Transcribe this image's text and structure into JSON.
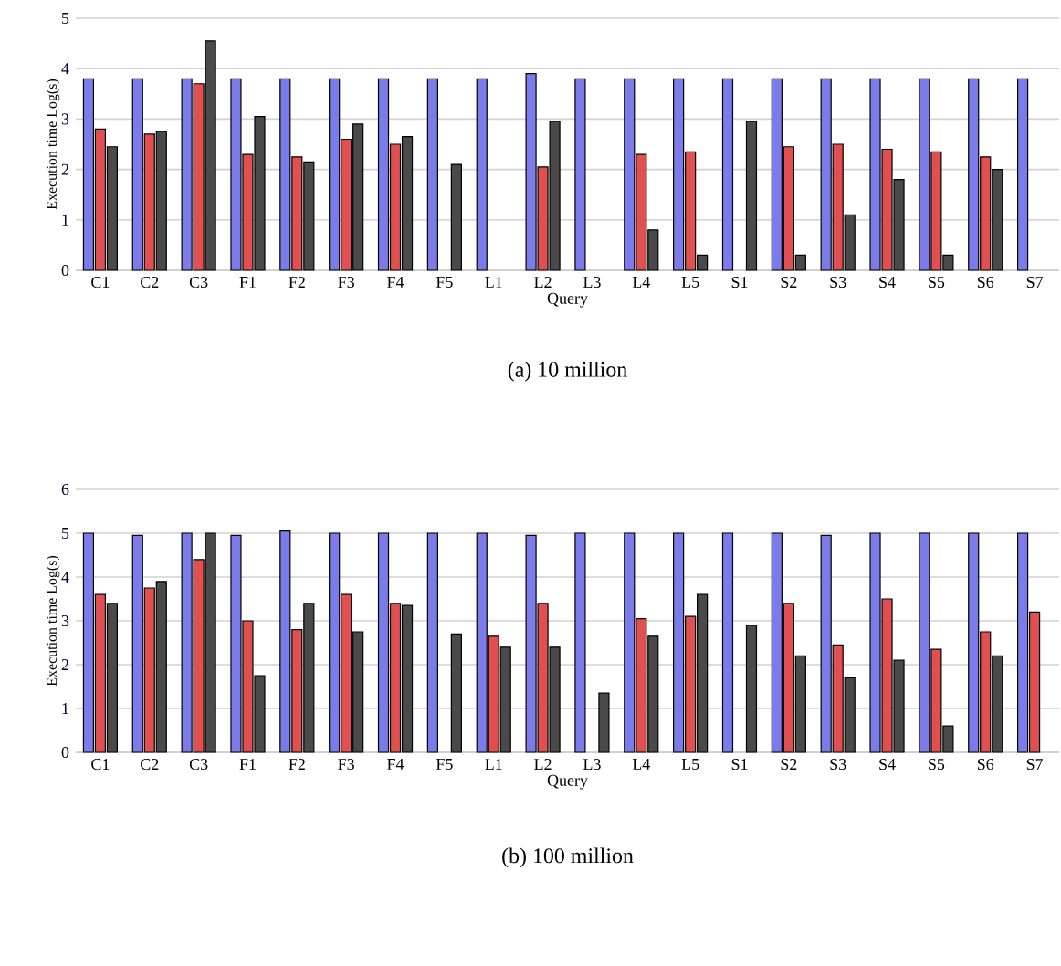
{
  "chart_data": [
    {
      "type": "bar",
      "title": "(a) 10 million",
      "xlabel": "Query",
      "ylabel": "Execution time Log(s)",
      "categories": [
        "C1",
        "C2",
        "C3",
        "F1",
        "F2",
        "F3",
        "F4",
        "F5",
        "L1",
        "L2",
        "L3",
        "L4",
        "L5",
        "S1",
        "S2",
        "S3",
        "S4",
        "S5",
        "S6",
        "S7"
      ],
      "series": [
        {
          "color": "#7b7bea",
          "values": [
            3.8,
            3.8,
            3.8,
            3.8,
            3.8,
            3.8,
            3.8,
            3.8,
            3.8,
            3.9,
            3.8,
            3.8,
            3.8,
            3.8,
            3.8,
            3.8,
            3.8,
            3.8,
            3.8,
            3.8
          ]
        },
        {
          "color": "#e05050",
          "values": [
            2.8,
            2.7,
            3.7,
            2.3,
            2.25,
            2.6,
            2.5,
            null,
            null,
            2.05,
            null,
            2.3,
            2.35,
            null,
            2.45,
            2.5,
            2.4,
            2.35,
            2.25,
            null
          ]
        },
        {
          "color": "#4a4a4a",
          "values": [
            2.45,
            2.75,
            4.55,
            3.05,
            2.15,
            2.9,
            2.65,
            2.1,
            null,
            2.95,
            null,
            0.8,
            0.3,
            2.95,
            0.3,
            1.1,
            1.8,
            0.3,
            2.0,
            null
          ]
        }
      ],
      "ylim": [
        0,
        5
      ],
      "yticks": [
        0,
        1,
        2,
        3,
        4,
        5
      ],
      "grid": "y"
    },
    {
      "type": "bar",
      "title": "(b) 100 million",
      "xlabel": "Query",
      "ylabel": "Execution time Log(s)",
      "categories": [
        "C1",
        "C2",
        "C3",
        "F1",
        "F2",
        "F3",
        "F4",
        "F5",
        "L1",
        "L2",
        "L3",
        "L4",
        "L5",
        "S1",
        "S2",
        "S3",
        "S4",
        "S5",
        "S6",
        "S7"
      ],
      "series": [
        {
          "color": "#7b7bea",
          "values": [
            5.0,
            4.95,
            5.0,
            4.95,
            5.05,
            5.0,
            5.0,
            5.0,
            5.0,
            4.95,
            5.0,
            5.0,
            5.0,
            5.0,
            5.0,
            4.95,
            5.0,
            5.0,
            5.0,
            5.0
          ]
        },
        {
          "color": "#e05050",
          "values": [
            3.6,
            3.75,
            4.4,
            3.0,
            2.8,
            3.6,
            3.4,
            null,
            2.65,
            3.4,
            null,
            3.05,
            3.1,
            null,
            3.4,
            2.45,
            3.5,
            2.35,
            2.75,
            3.2
          ]
        },
        {
          "color": "#4a4a4a",
          "values": [
            3.4,
            3.9,
            5.0,
            1.75,
            3.4,
            2.75,
            3.35,
            2.7,
            2.4,
            2.4,
            1.35,
            2.65,
            3.6,
            2.9,
            2.2,
            1.7,
            2.1,
            0.6,
            2.2,
            null
          ]
        }
      ],
      "ylim": [
        0,
        6
      ],
      "yticks": [
        0,
        1,
        2,
        3,
        4,
        5,
        6
      ],
      "grid": "y"
    }
  ]
}
